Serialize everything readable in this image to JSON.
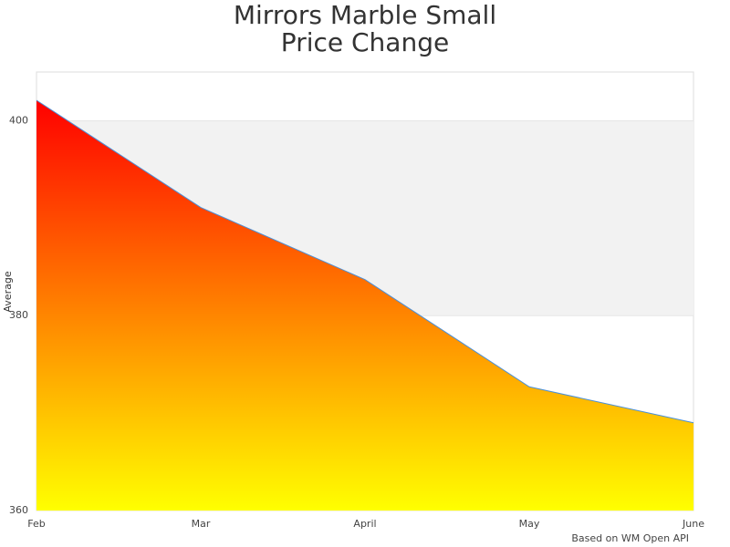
{
  "chart_data": {
    "type": "area",
    "title": [
      "Mirrors Marble Small",
      "Price Change"
    ],
    "y_label": "Average",
    "credits": "Based on WM Open API",
    "categories": [
      "Feb",
      "Mar",
      "April",
      "May",
      "June"
    ],
    "series": [
      {
        "name": "Average",
        "color": "#4a90d9",
        "values": [
          402.1,
          391.1,
          383.7,
          372.7,
          369.0
        ]
      }
    ],
    "gradient": [
      "#ff0000",
      "#ffff00"
    ],
    "ylim": [
      360,
      405
    ],
    "yticks": [
      360,
      380,
      400
    ],
    "bands": [
      {
        "from": 380,
        "to": 400,
        "color": "#f2f2f2"
      }
    ]
  }
}
